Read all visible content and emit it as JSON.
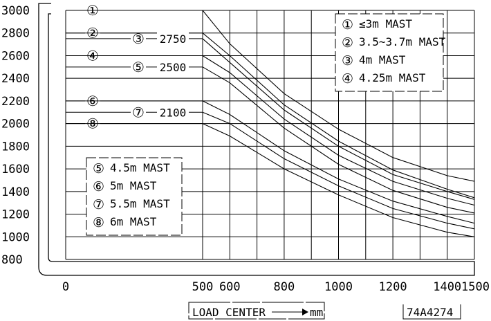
{
  "chart_data": {
    "type": "line",
    "title": "",
    "xlabel": "LOAD CENTER",
    "xlabel_arrow_unit": "mm",
    "ylabel": "",
    "figure_code": "74A4274",
    "x_ticks": [
      "0",
      "500",
      "600",
      "800",
      "1000",
      "1200",
      "1400",
      "1500"
    ],
    "y_ticks": [
      "3000",
      "2800",
      "2600",
      "2400",
      "2200",
      "2000",
      "1800",
      "1600",
      "1400",
      "1200",
      "1000",
      "800"
    ],
    "xlim": [
      0,
      1500
    ],
    "ylim": [
      800,
      3000
    ],
    "grid": true,
    "legend_position": "top-right and middle-left",
    "rated_capacity_labels": [
      "2750",
      "2500",
      "2100"
    ],
    "series": [
      {
        "marker": "①",
        "name": "≤3m MAST",
        "values": [
          [
            0,
            3000
          ],
          [
            500,
            3000
          ],
          [
            600,
            2705
          ],
          [
            800,
            2265
          ],
          [
            1000,
            1950
          ],
          [
            1200,
            1700
          ],
          [
            1400,
            1540
          ],
          [
            1500,
            1490
          ]
        ]
      },
      {
        "marker": "②",
        "name": "3.5~3.7m MAST",
        "values": [
          [
            0,
            2800
          ],
          [
            500,
            2800
          ],
          [
            600,
            2600
          ],
          [
            800,
            2165
          ],
          [
            1000,
            1845
          ],
          [
            1200,
            1590
          ],
          [
            1400,
            1420
          ],
          [
            1500,
            1345
          ]
        ]
      },
      {
        "marker": "③",
        "name": "4m MAST",
        "values": [
          [
            0,
            2750
          ],
          [
            500,
            2750
          ],
          [
            600,
            2540
          ],
          [
            800,
            2120
          ],
          [
            1000,
            1800
          ],
          [
            1200,
            1550
          ],
          [
            1400,
            1400
          ],
          [
            1500,
            1330
          ]
        ]
      },
      {
        "marker": "④",
        "name": "4.25m MAST",
        "values": [
          [
            0,
            2600
          ],
          [
            500,
            2600
          ],
          [
            600,
            2450
          ],
          [
            800,
            2040
          ],
          [
            1000,
            1720
          ],
          [
            1200,
            1490
          ],
          [
            1400,
            1340
          ],
          [
            1500,
            1280
          ]
        ]
      },
      {
        "marker": "⑤",
        "name": "4.5m MAST",
        "values": [
          [
            0,
            2500
          ],
          [
            500,
            2500
          ],
          [
            600,
            2360
          ],
          [
            800,
            1960
          ],
          [
            1000,
            1640
          ],
          [
            1200,
            1410
          ],
          [
            1400,
            1260
          ],
          [
            1500,
            1210
          ]
        ]
      },
      {
        "marker": "⑥",
        "name": "5m MAST",
        "values": [
          [
            0,
            2200
          ],
          [
            500,
            2200
          ],
          [
            600,
            2080
          ],
          [
            800,
            1760
          ],
          [
            1000,
            1510
          ],
          [
            1200,
            1315
          ],
          [
            1400,
            1180
          ],
          [
            1500,
            1120
          ]
        ]
      },
      {
        "marker": "⑦",
        "name": "5.5m MAST",
        "values": [
          [
            0,
            2100
          ],
          [
            500,
            2100
          ],
          [
            600,
            2000
          ],
          [
            800,
            1690
          ],
          [
            1000,
            1450
          ],
          [
            1200,
            1250
          ],
          [
            1400,
            1120
          ],
          [
            1500,
            1070
          ]
        ]
      },
      {
        "marker": "⑧",
        "name": "6m MAST",
        "values": [
          [
            0,
            2000
          ],
          [
            500,
            2000
          ],
          [
            600,
            1890
          ],
          [
            800,
            1600
          ],
          [
            1000,
            1370
          ],
          [
            1200,
            1170
          ],
          [
            1400,
            1040
          ],
          [
            1500,
            1000
          ]
        ]
      }
    ]
  }
}
